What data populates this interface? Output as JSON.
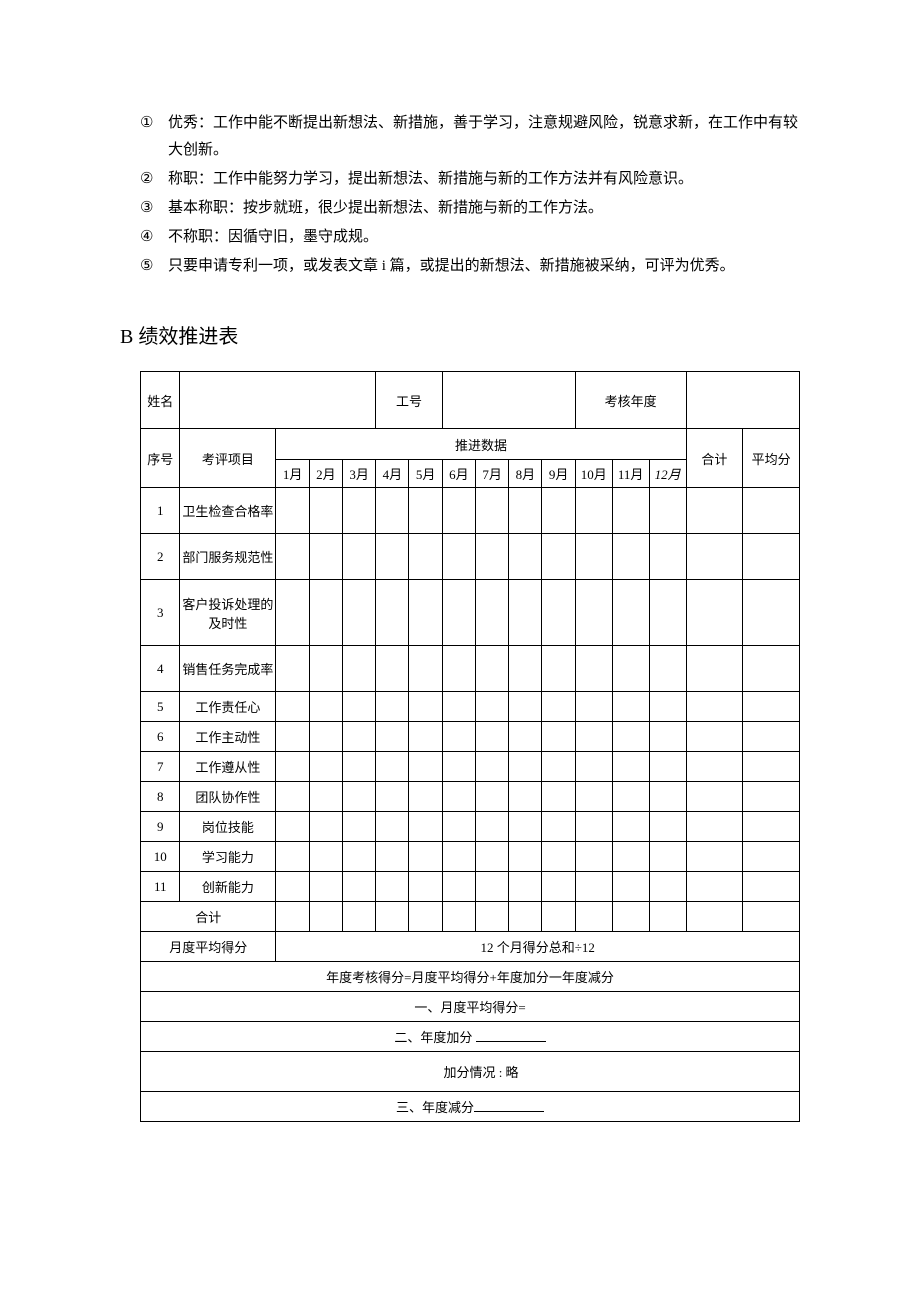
{
  "criteria": {
    "items": [
      {
        "num": "①",
        "text": "优秀：工作中能不断提出新想法、新措施，善于学习，注意规避风险，锐意求新，在工作中有较大创新。"
      },
      {
        "num": "②",
        "text": "称职：工作中能努力学习，提出新想法、新措施与新的工作方法并有风险意识。"
      },
      {
        "num": "③",
        "text": "基本称职：按步就班，很少提出新想法、新措施与新的工作方法。"
      },
      {
        "num": "④",
        "text": "不称职：因循守旧，墨守成规。"
      },
      {
        "num": "⑤",
        "text": "只要申请专利一项，或发表文章 i 篇，或提出的新想法、新措施被采纳，可评为优秀。"
      }
    ]
  },
  "section_title": "B 绩效推进表",
  "table": {
    "header": {
      "name_label": "姓名",
      "empno_label": "工号",
      "year_label": "考核年度",
      "seq_label": "序号",
      "item_label": "考评项目",
      "data_label": "推进数据",
      "total_label": "合计",
      "avg_label": "平均分",
      "months": [
        "1月",
        "2月",
        "3月",
        "4月",
        "5月",
        "6月",
        "7月",
        "8月",
        "9月",
        "10月",
        "11月",
        "12月"
      ],
      "month_italic_idx": [
        11
      ]
    },
    "rows": [
      {
        "seq": "1",
        "item": "卫生检查合格率",
        "tall": true
      },
      {
        "seq": "2",
        "item": "部门服务规范性",
        "tall": true
      },
      {
        "seq": "3",
        "item": "客户投诉处理的及时性",
        "tall": true,
        "extra": true
      },
      {
        "seq": "4",
        "item": "销售任务完成率",
        "tall": true
      },
      {
        "seq": "5",
        "item": "工作责任心"
      },
      {
        "seq": "6",
        "item": "工作主动性"
      },
      {
        "seq": "7",
        "item": "工作遵从性"
      },
      {
        "seq": "8",
        "item": "团队协作性"
      },
      {
        "seq": "9",
        "item": "岗位技能"
      },
      {
        "seq": "10",
        "item": "学习能力"
      },
      {
        "seq": "11",
        "item": "创新能力"
      }
    ],
    "total_row_label": "合计",
    "month_avg_label": "月度平均得分",
    "month_avg_formula": "12 个月得分总和÷12",
    "year_formula": "年度考核得分=月度平均得分+年度加分一年度减分",
    "line1": "一、月度平均得分=",
    "line2_pre": "二、年度加分 ",
    "bonus_note": "加分情况 : 略",
    "line3_pre": "三、年度减分"
  },
  "style": {
    "font_family": "SimSun",
    "body_fontsize": 15,
    "table_fontsize": 13,
    "title_fontsize": 20,
    "text_color": "#000000",
    "background_color": "#ffffff",
    "border_color": "#000000"
  }
}
